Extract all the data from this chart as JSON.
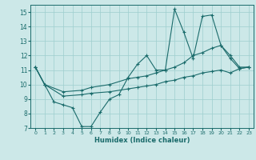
{
  "xlabel": "Humidex (Indice chaleur)",
  "xlim": [
    -0.5,
    23.5
  ],
  "ylim": [
    7,
    15.5
  ],
  "xticks": [
    0,
    1,
    2,
    3,
    4,
    5,
    6,
    7,
    8,
    9,
    10,
    11,
    12,
    13,
    14,
    15,
    16,
    17,
    18,
    19,
    20,
    21,
    22,
    23
  ],
  "yticks": [
    7,
    8,
    9,
    10,
    11,
    12,
    13,
    14,
    15
  ],
  "bg_color": "#cce8e8",
  "line_color": "#1a6b6b",
  "line1_x": [
    0,
    1,
    2,
    3,
    4,
    5,
    6,
    7,
    8,
    9,
    10,
    11,
    12,
    13,
    14,
    15,
    16,
    17,
    18,
    19,
    20,
    21,
    22,
    23
  ],
  "line1_y": [
    11.2,
    10.0,
    8.8,
    8.6,
    8.4,
    7.1,
    7.1,
    8.1,
    9.0,
    9.3,
    10.5,
    11.4,
    12.0,
    11.0,
    11.0,
    15.2,
    13.6,
    11.8,
    14.7,
    14.8,
    12.7,
    11.8,
    11.1,
    11.2
  ],
  "line2_x": [
    0,
    1,
    3,
    5,
    6,
    8,
    10,
    11,
    12,
    13,
    14,
    15,
    16,
    17,
    18,
    19,
    20,
    21,
    22,
    23
  ],
  "line2_y": [
    11.2,
    10.0,
    9.5,
    9.6,
    9.8,
    10.0,
    10.4,
    10.5,
    10.6,
    10.8,
    11.0,
    11.2,
    11.5,
    12.0,
    12.2,
    12.5,
    12.7,
    12.0,
    11.2,
    11.2
  ],
  "line3_x": [
    0,
    1,
    3,
    5,
    6,
    8,
    10,
    11,
    12,
    13,
    14,
    15,
    16,
    17,
    18,
    19,
    20,
    21,
    22,
    23
  ],
  "line3_y": [
    11.2,
    10.0,
    9.2,
    9.3,
    9.4,
    9.5,
    9.7,
    9.8,
    9.9,
    10.0,
    10.2,
    10.3,
    10.5,
    10.6,
    10.8,
    10.9,
    11.0,
    10.8,
    11.1,
    11.2
  ]
}
